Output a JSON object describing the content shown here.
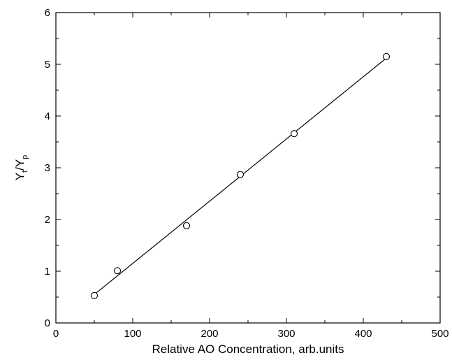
{
  "chart_data": {
    "type": "scatter",
    "xlabel": "Relative AO Concentration, arb.units",
    "ylabel": {
      "main1": "Y",
      "sub1": "t",
      "slash": "/",
      "main2": "Y",
      "sub2": "p"
    },
    "xlim": [
      0,
      500
    ],
    "ylim": [
      0,
      6
    ],
    "x_ticks": [
      "0",
      "100",
      "200",
      "300",
      "400",
      "500"
    ],
    "y_ticks": [
      "0",
      "1",
      "2",
      "3",
      "4",
      "5",
      "6"
    ],
    "grid": false,
    "legend": "none",
    "series": [
      {
        "marker": "open-circle",
        "x": [
          50,
          80,
          170,
          240,
          310,
          430
        ],
        "y": [
          0.53,
          1.01,
          1.88,
          2.87,
          3.66,
          5.15
        ]
      }
    ],
    "fit_line": {
      "x": [
        50,
        430
      ],
      "y": [
        0.55,
        5.12
      ]
    },
    "colors": {
      "ink": "#000000",
      "background": "#ffffff"
    }
  }
}
